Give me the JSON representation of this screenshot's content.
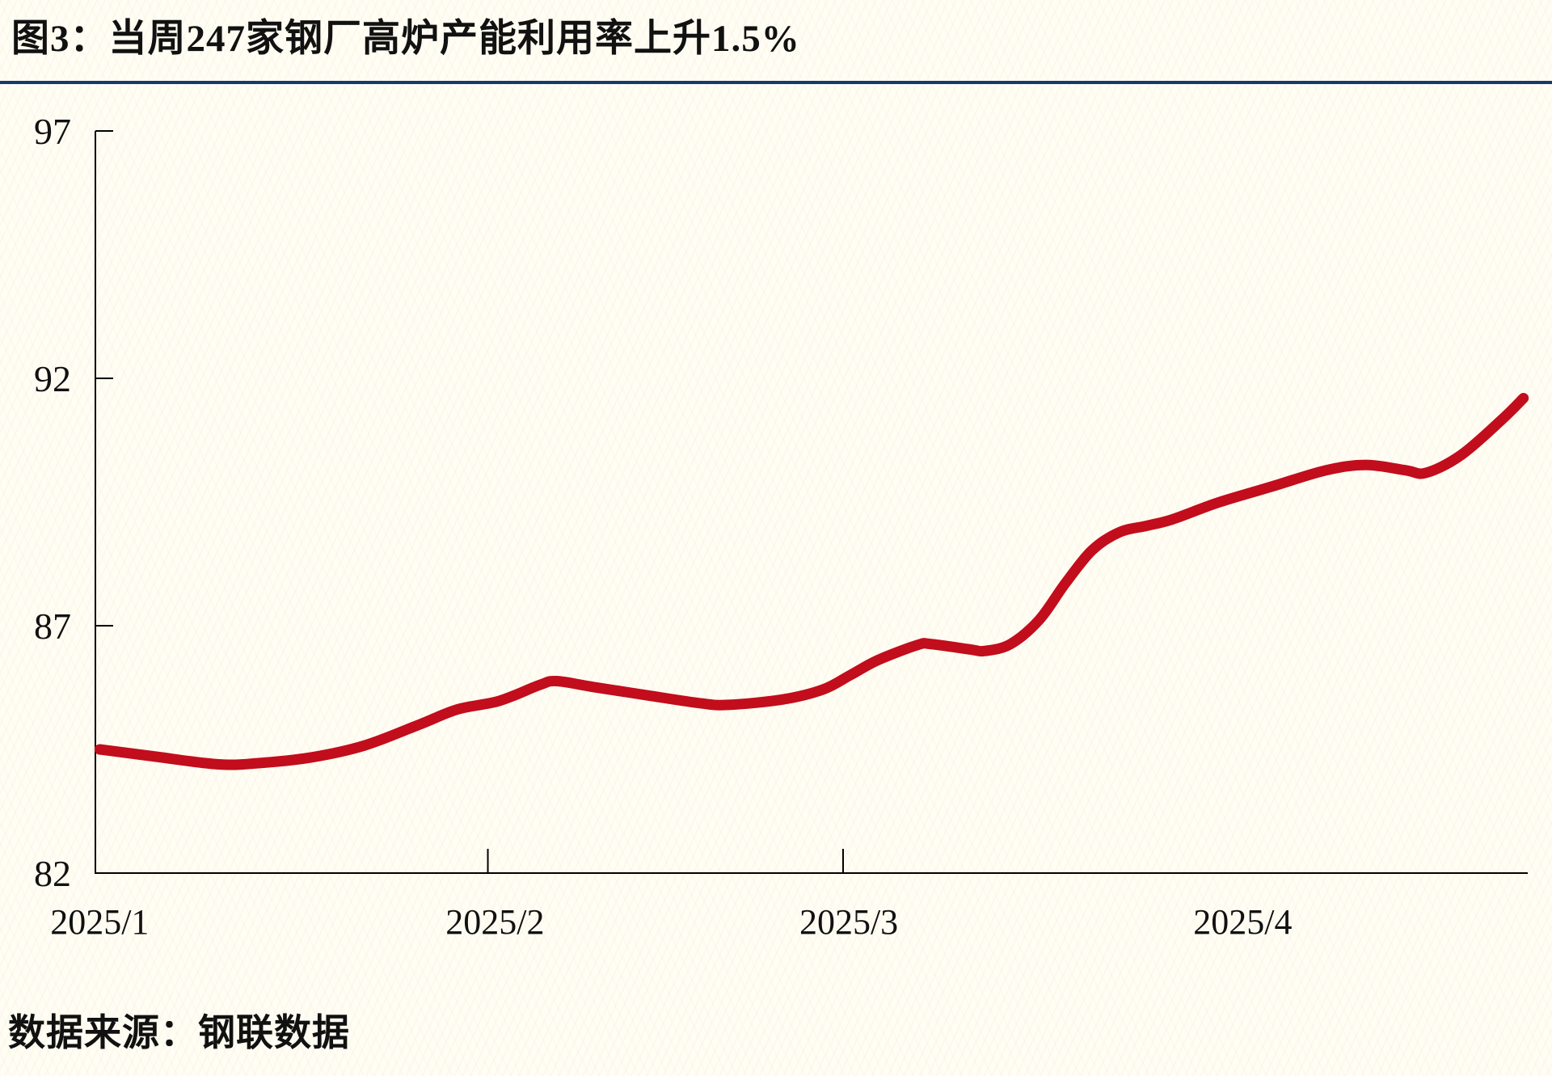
{
  "header": {
    "title": "图3：当周247家钢厂高炉产能利用率上升1.5%"
  },
  "footer": {
    "source_label": "数据来源：钢联数据"
  },
  "colors": {
    "divider_navy": "#17396b",
    "line_red": "#c20d1c",
    "axis_black": "#000000",
    "label_text": "#111111",
    "background": "#fffdf4"
  },
  "chart_data": {
    "type": "line",
    "title": "图3：当周247家钢厂高炉产能利用率上升1.5%",
    "source": "数据来源：钢联数据",
    "legend": "none",
    "grid": "off",
    "ylabel": "",
    "xlabel": "",
    "ylim": [
      82,
      97
    ],
    "y_axis": {
      "min": 82,
      "max": 97,
      "ticks": [
        97,
        92,
        87,
        82
      ]
    },
    "x_axis": {
      "tick_marks": [
        0.274,
        0.522
      ],
      "labels": [
        {
          "label": "2025/1",
          "pos": 0.003
        },
        {
          "label": "2025/2",
          "pos": 0.279
        },
        {
          "label": "2025/3",
          "pos": 0.526
        },
        {
          "label": "2025/4",
          "pos": 0.801
        }
      ]
    },
    "points": [
      [
        0.003,
        84.5
      ],
      [
        0.038,
        84.37
      ],
      [
        0.085,
        84.2
      ],
      [
        0.113,
        84.22
      ],
      [
        0.151,
        84.34
      ],
      [
        0.188,
        84.58
      ],
      [
        0.226,
        85.0
      ],
      [
        0.253,
        85.31
      ],
      [
        0.282,
        85.48
      ],
      [
        0.31,
        85.8
      ],
      [
        0.322,
        85.88
      ],
      [
        0.348,
        85.76
      ],
      [
        0.386,
        85.59
      ],
      [
        0.423,
        85.43
      ],
      [
        0.442,
        85.4
      ],
      [
        0.48,
        85.51
      ],
      [
        0.508,
        85.71
      ],
      [
        0.527,
        86.0
      ],
      [
        0.546,
        86.3
      ],
      [
        0.574,
        86.61
      ],
      [
        0.583,
        86.63
      ],
      [
        0.611,
        86.52
      ],
      [
        0.621,
        86.49
      ],
      [
        0.639,
        86.63
      ],
      [
        0.659,
        87.12
      ],
      [
        0.677,
        87.85
      ],
      [
        0.696,
        88.53
      ],
      [
        0.715,
        88.89
      ],
      [
        0.734,
        89.02
      ],
      [
        0.752,
        89.15
      ],
      [
        0.784,
        89.49
      ],
      [
        0.821,
        89.81
      ],
      [
        0.859,
        90.14
      ],
      [
        0.887,
        90.25
      ],
      [
        0.915,
        90.14
      ],
      [
        0.929,
        90.09
      ],
      [
        0.953,
        90.44
      ],
      [
        0.981,
        91.14
      ],
      [
        0.997,
        91.6
      ]
    ]
  }
}
